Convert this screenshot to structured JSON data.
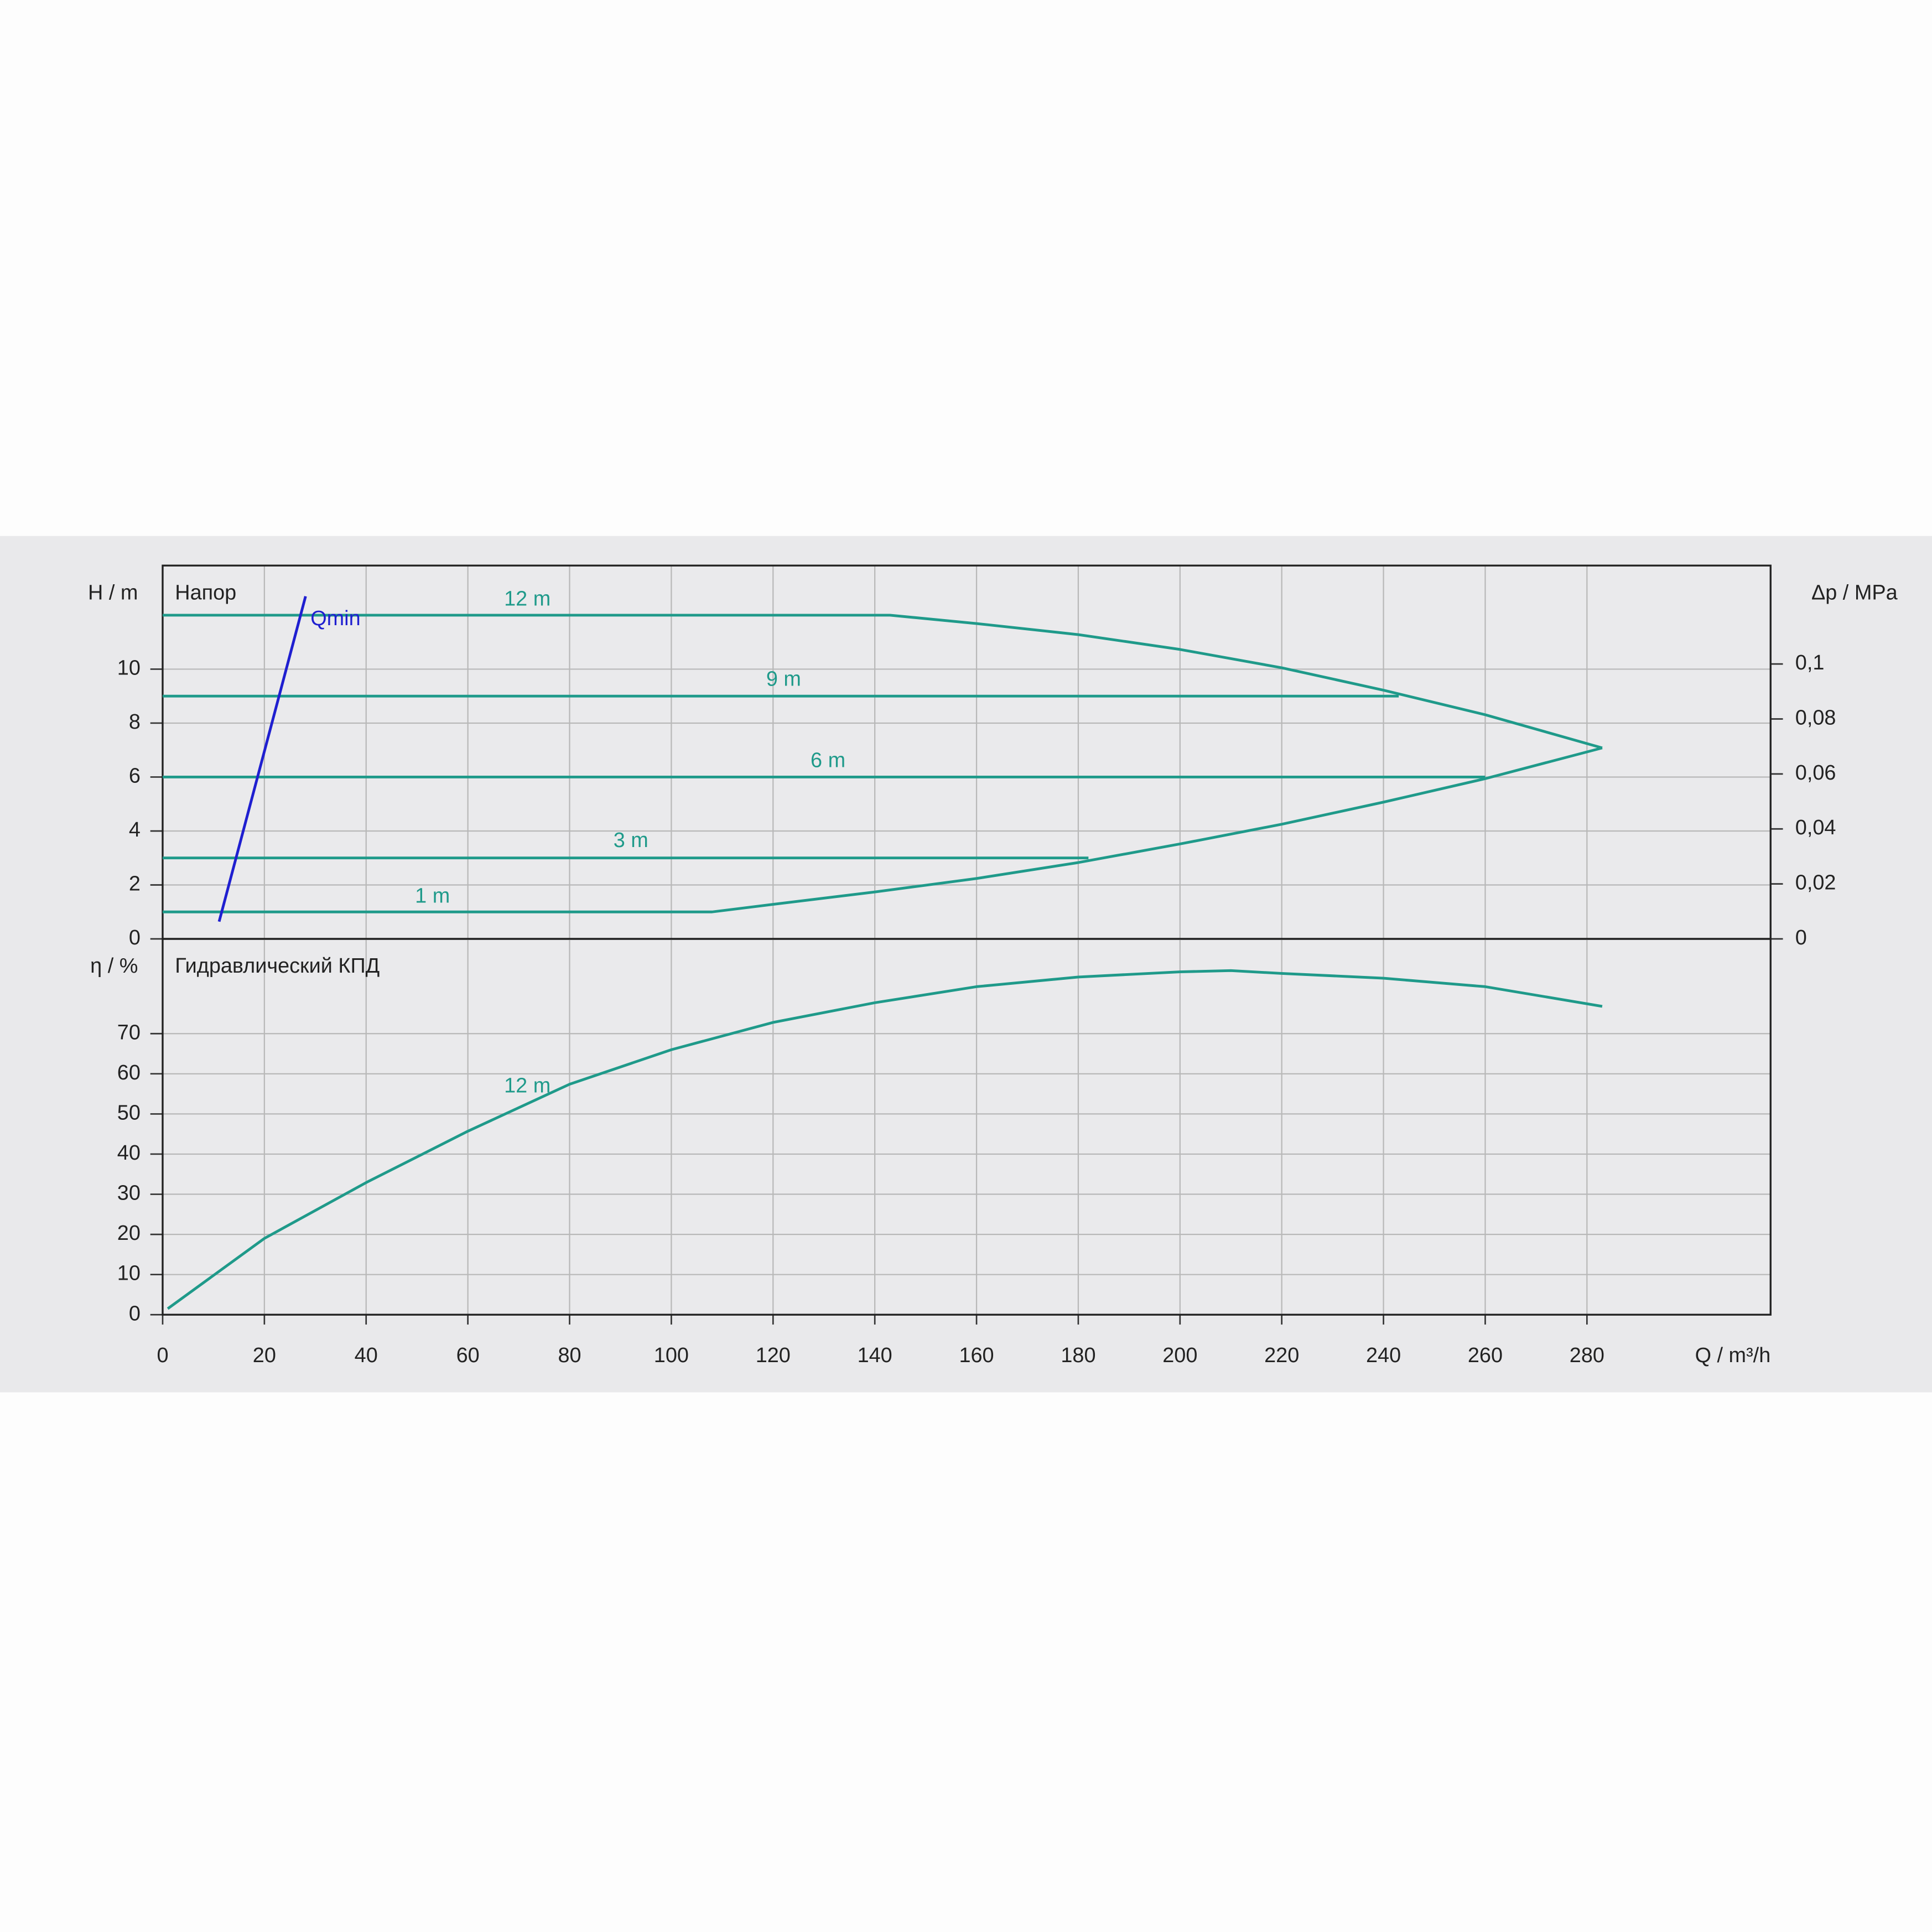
{
  "chart_data": [
    {
      "type": "line",
      "title": "Напор",
      "y_label": "H / m",
      "y2_label": "Δp / MPa",
      "xlim": [
        0,
        316.1
      ],
      "xticks": [
        0,
        20,
        40,
        60,
        80,
        100,
        120,
        140,
        160,
        180,
        200,
        220,
        240,
        260,
        280
      ],
      "ylim": [
        0,
        13.84
      ],
      "yticks": [
        0,
        2,
        4,
        6,
        8,
        10
      ],
      "y2lim": [
        0,
        0.1358
      ],
      "y2ticks": [
        0,
        {
          "value": 0.02,
          "label": "0,02"
        },
        {
          "value": 0.04,
          "label": "0,04"
        },
        {
          "value": 0.06,
          "label": "0,06"
        },
        {
          "value": 0.08,
          "label": "0,08"
        },
        {
          "value": 0.1,
          "label": "0,1"
        }
      ],
      "grid": true,
      "series": [
        {
          "name": "12 m",
          "color": "#1f9a8a",
          "x": [
            0,
            143,
            160,
            180,
            200,
            220,
            240,
            260,
            283
          ],
          "values": [
            12,
            12,
            11.69,
            11.28,
            10.73,
            10.05,
            9.22,
            8.31,
            7.08
          ]
        },
        {
          "name": "9 m",
          "color": "#1f9a8a",
          "x": [
            0,
            243
          ],
          "values": [
            9,
            9
          ]
        },
        {
          "name": "6 m",
          "color": "#1f9a8a",
          "x": [
            0,
            260
          ],
          "values": [
            6,
            6
          ]
        },
        {
          "name": "3 m",
          "color": "#1f9a8a",
          "x": [
            0,
            182
          ],
          "values": [
            3,
            3
          ]
        },
        {
          "name": "1 m",
          "color": "#1f9a8a",
          "x": [
            0,
            108,
            120,
            140,
            160,
            180,
            200,
            220,
            240,
            260,
            283
          ],
          "values": [
            1,
            1,
            1.28,
            1.74,
            2.24,
            2.83,
            3.52,
            4.25,
            5.07,
            5.94,
            7.08
          ]
        },
        {
          "name": "Qmin",
          "color": "#1f1fd0",
          "x": [
            11.1,
            28.1
          ],
          "values": [
            0.64,
            12.7
          ]
        }
      ]
    },
    {
      "type": "line",
      "title": "Гидравлический КПД",
      "y_label": "η / %",
      "x_label": "Q / m³/h",
      "xlim": [
        0,
        316.1
      ],
      "xticks": [
        0,
        20,
        40,
        60,
        80,
        100,
        120,
        140,
        160,
        180,
        200,
        220,
        240,
        260,
        280
      ],
      "ylim": [
        0,
        93.6
      ],
      "yticks": [
        0,
        10,
        20,
        30,
        40,
        50,
        60,
        70
      ],
      "grid": true,
      "series": [
        {
          "name": "12 m",
          "color": "#1f9a8a",
          "x": [
            1,
            20,
            40,
            60,
            80,
            100,
            120,
            140,
            160,
            180,
            200,
            210,
            220,
            240,
            260,
            283
          ],
          "values": [
            1.5,
            19,
            32.9,
            45.7,
            57.4,
            66,
            72.8,
            77.7,
            81.7,
            84.1,
            85.4,
            85.7,
            85,
            83.8,
            81.7,
            76.8
          ]
        }
      ]
    }
  ]
}
